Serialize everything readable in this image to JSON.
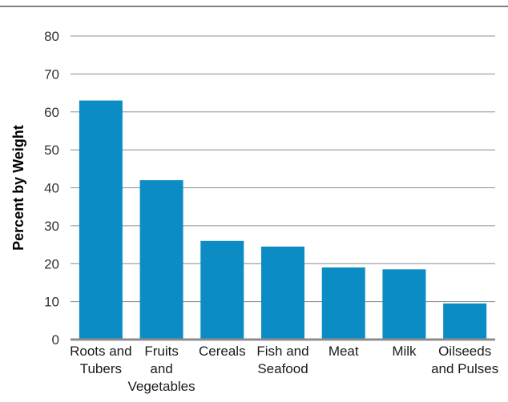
{
  "chart_data": {
    "type": "bar",
    "title": "",
    "xlabel": "",
    "ylabel": "Percent by Weight",
    "ylim": [
      0,
      80
    ],
    "yticks": [
      0,
      10,
      20,
      30,
      40,
      50,
      60,
      70,
      80
    ],
    "grid": true,
    "categories": [
      [
        "Roots and",
        "Tubers"
      ],
      [
        "Fruits",
        "and",
        "Vegetables"
      ],
      [
        "Cereals"
      ],
      [
        "Fish and",
        "Seafood"
      ],
      [
        "Meat"
      ],
      [
        "Milk"
      ],
      [
        "Oilseeds",
        "and Pulses"
      ]
    ],
    "values": [
      63,
      42,
      26,
      24.5,
      19,
      18.5,
      9.5
    ],
    "bar_color": "#0c8cc4"
  }
}
